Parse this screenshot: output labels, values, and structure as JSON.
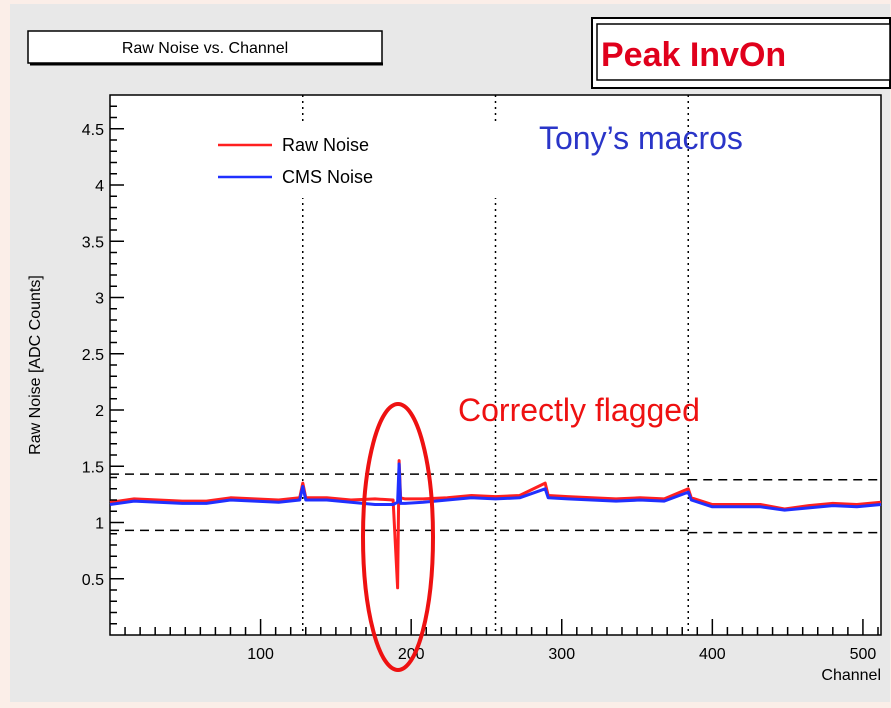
{
  "chart_data": {
    "type": "line",
    "title": "Raw Noise vs. Channel",
    "xlabel": "Channel",
    "ylabel": "Raw Noise [ADC Counts]",
    "xlim": [
      0,
      512
    ],
    "ylim": [
      0,
      4.8
    ],
    "x_ticks": [
      100,
      200,
      300,
      400,
      500
    ],
    "x_tick_labels": [
      "100",
      "200",
      "300",
      "400",
      "500"
    ],
    "y_ticks": [
      0.5,
      1,
      1.5,
      2,
      2.5,
      3,
      3.5,
      4,
      4.5
    ],
    "y_tick_labels": [
      "0.5",
      "1",
      "1.5",
      "2",
      "2.5",
      "3",
      "3.5",
      "4",
      "4.5"
    ],
    "legend_position": "top-left",
    "grid": "vertical dotted lines at chip boundaries",
    "chip_boundaries": [
      128,
      256,
      384
    ],
    "threshold_lines": [
      {
        "x_range": [
          0,
          384
        ],
        "low": 0.93,
        "high": 1.43
      },
      {
        "x_range": [
          384,
          512
        ],
        "low": 0.91,
        "high": 1.38
      }
    ],
    "series": [
      {
        "name": "Raw Noise",
        "color": "#ff2020",
        "x": [
          0,
          16,
          32,
          48,
          64,
          80,
          96,
          112,
          126,
          128,
          130,
          144,
          160,
          176,
          188,
          191,
          192,
          193,
          196,
          208,
          224,
          240,
          256,
          272,
          289,
          291,
          304,
          320,
          336,
          352,
          368,
          384,
          386,
          400,
          416,
          432,
          448,
          464,
          480,
          496,
          512
        ],
        "values": [
          1.18,
          1.21,
          1.2,
          1.19,
          1.19,
          1.22,
          1.21,
          1.2,
          1.22,
          1.35,
          1.22,
          1.22,
          1.2,
          1.21,
          1.2,
          0.42,
          1.55,
          1.22,
          1.21,
          1.21,
          1.22,
          1.24,
          1.23,
          1.24,
          1.35,
          1.24,
          1.23,
          1.22,
          1.21,
          1.22,
          1.21,
          1.3,
          1.22,
          1.16,
          1.16,
          1.16,
          1.12,
          1.15,
          1.17,
          1.16,
          1.18
        ]
      },
      {
        "name": "CMS Noise",
        "color": "#2030ff",
        "x": [
          0,
          16,
          32,
          48,
          64,
          80,
          96,
          112,
          126,
          128,
          130,
          144,
          160,
          176,
          188,
          191,
          192,
          193,
          196,
          208,
          224,
          240,
          256,
          272,
          289,
          291,
          304,
          320,
          336,
          352,
          368,
          384,
          386,
          400,
          416,
          432,
          448,
          464,
          480,
          496,
          512
        ],
        "values": [
          1.16,
          1.19,
          1.18,
          1.17,
          1.17,
          1.2,
          1.19,
          1.18,
          1.2,
          1.32,
          1.2,
          1.2,
          1.18,
          1.16,
          1.16,
          1.18,
          1.52,
          1.17,
          1.17,
          1.18,
          1.2,
          1.22,
          1.21,
          1.22,
          1.3,
          1.22,
          1.21,
          1.2,
          1.19,
          1.2,
          1.19,
          1.27,
          1.2,
          1.14,
          1.14,
          1.14,
          1.11,
          1.13,
          1.15,
          1.14,
          1.16
        ]
      }
    ]
  },
  "stamp": {
    "text": "Peak InvOn",
    "color": "#e0001c"
  },
  "annotations": {
    "macros_note": "Tony’s macros",
    "macros_color": "#2a35c8",
    "flag_note": "Correctly flagged",
    "flag_color": "#ee1111"
  }
}
